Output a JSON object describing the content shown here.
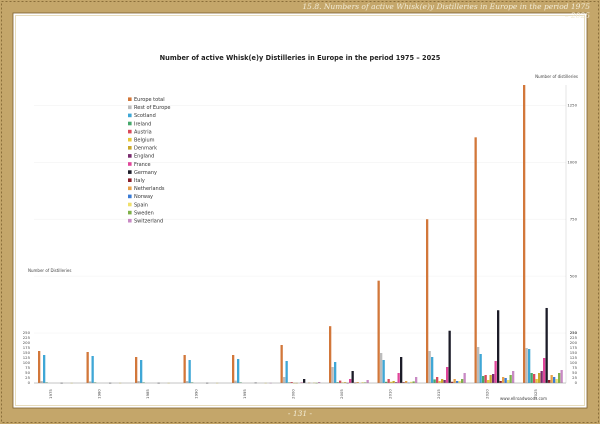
{
  "page": {
    "header": "15.8. Numbers of active Whisk(e)y Distilleries in Europe in the period 1975 – 2025",
    "page_number": "- 131 -",
    "url": "www.ellroadwoods.com"
  },
  "colors": {
    "frame": "#b99a5a",
    "frame_dark": "#8a6e3a"
  },
  "chart_data": {
    "type": "bar",
    "title": "Number of active Whisk(e)y Distilleries in Europe in the period 1975 – 2025",
    "left_axis_label": "Number of Distilleries",
    "right_axis_label": "Number of distilleries",
    "x": [
      "1975",
      "1980",
      "1985",
      "1990",
      "1995",
      "2000",
      "2005",
      "2010",
      "2015",
      "2020",
      "2025"
    ],
    "upper_ticks": [
      "250",
      "500",
      "750",
      "1000",
      "1250"
    ],
    "lower_ticks": [
      "0",
      "25",
      "50",
      "75",
      "100",
      "125",
      "150",
      "175",
      "200",
      "225",
      "250"
    ],
    "series": [
      {
        "name": "Europe total",
        "color": "#d2773a",
        "values": [
          160,
          155,
          130,
          140,
          140,
          190,
          280,
          480,
          750,
          1110,
          1340
        ]
      },
      {
        "name": "Rest of Europe",
        "color": "#bcbcbc",
        "values": [
          10,
          8,
          10,
          10,
          12,
          30,
          80,
          150,
          160,
          180,
          175
        ]
      },
      {
        "name": "Scotland",
        "color": "#3fa7d6",
        "values": [
          140,
          135,
          115,
          115,
          120,
          110,
          105,
          115,
          130,
          145,
          170
        ]
      },
      {
        "name": "Ireland",
        "color": "#46a86c",
        "values": [
          3,
          3,
          3,
          3,
          3,
          3,
          4,
          6,
          18,
          35,
          50
        ]
      },
      {
        "name": "Austria",
        "color": "#d94a5a",
        "values": [
          0,
          0,
          0,
          0,
          0,
          5,
          12,
          20,
          30,
          40,
          45
        ]
      },
      {
        "name": "Belgium",
        "color": "#e6c93c",
        "values": [
          0,
          0,
          0,
          0,
          0,
          1,
          3,
          6,
          10,
          15,
          20
        ]
      },
      {
        "name": "Denmark",
        "color": "#c9a82a",
        "values": [
          0,
          0,
          0,
          0,
          0,
          1,
          4,
          10,
          20,
          40,
          50
        ]
      },
      {
        "name": "England",
        "color": "#7a2b6e",
        "values": [
          0,
          0,
          0,
          0,
          0,
          0,
          1,
          4,
          15,
          45,
          60
        ]
      },
      {
        "name": "France",
        "color": "#e0459a",
        "values": [
          0,
          0,
          0,
          0,
          0,
          3,
          20,
          50,
          80,
          110,
          125
        ]
      },
      {
        "name": "Germany",
        "color": "#1c1c28",
        "values": [
          1,
          1,
          1,
          1,
          2,
          20,
          60,
          130,
          260,
          350,
          360
        ]
      },
      {
        "name": "Italy",
        "color": "#8a1e2a",
        "values": [
          0,
          0,
          0,
          0,
          0,
          0,
          2,
          4,
          6,
          10,
          15
        ]
      },
      {
        "name": "Netherlands",
        "color": "#e7a24a",
        "values": [
          0,
          0,
          0,
          0,
          0,
          2,
          5,
          10,
          20,
          30,
          40
        ]
      },
      {
        "name": "Norway",
        "color": "#3a7bd5",
        "values": [
          0,
          0,
          0,
          0,
          0,
          0,
          0,
          2,
          10,
          25,
          30
        ]
      },
      {
        "name": "Spain",
        "color": "#f0e06a",
        "values": [
          1,
          1,
          1,
          1,
          1,
          2,
          4,
          6,
          10,
          15,
          20
        ]
      },
      {
        "name": "Sweden",
        "color": "#7fb04a",
        "values": [
          0,
          0,
          0,
          0,
          0,
          1,
          3,
          8,
          20,
          40,
          50
        ]
      },
      {
        "name": "Switzerland",
        "color": "#c88ac4",
        "values": [
          0,
          0,
          0,
          0,
          1,
          5,
          15,
          30,
          50,
          60,
          65
        ]
      }
    ]
  }
}
